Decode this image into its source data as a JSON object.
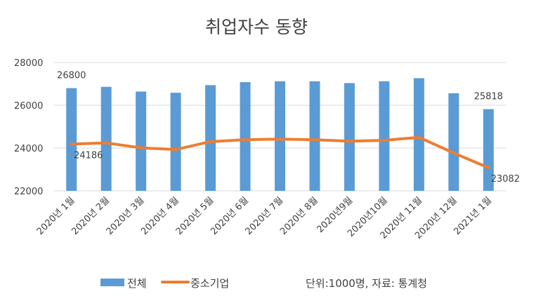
{
  "chart_data": {
    "type": "bar",
    "title": "취업자수 동향",
    "categories": [
      "2020년 1월",
      "2020년 2월",
      "2020년 3월",
      "2020년 4월",
      "2020년 5월",
      "2020년 6월",
      "2020년 7월",
      "2020년 8월",
      "2020년9월",
      "2020년10월",
      "2020년 11월",
      "2020년 12월",
      "2021년 1월"
    ],
    "series": [
      {
        "name": "전체",
        "type": "bar",
        "color": "#5B9BD5",
        "values": [
          26800,
          26860,
          26640,
          26585,
          26940,
          27080,
          27120,
          27120,
          27035,
          27120,
          27265,
          26560,
          25818
        ]
      },
      {
        "name": "중소기업",
        "type": "line",
        "color": "#ED7D31",
        "values": [
          24186,
          24240,
          24010,
          23930,
          24300,
          24390,
          24420,
          24390,
          24320,
          24360,
          24500,
          23770,
          23082
        ]
      }
    ],
    "data_labels": [
      {
        "series": 0,
        "index": 0,
        "text": "26800"
      },
      {
        "series": 0,
        "index": 12,
        "text": "25818"
      },
      {
        "series": 1,
        "index": 0,
        "text": "24186"
      },
      {
        "series": 1,
        "index": 12,
        "text": "23082"
      }
    ],
    "y_ticks": [
      "22000",
      "24000",
      "26000",
      "28000"
    ],
    "ylim": [
      22000,
      28000
    ],
    "grid": true,
    "legend": "bottom",
    "xlabel": "",
    "ylabel": "",
    "note": "단위:1000명, 자료: 통계청"
  }
}
